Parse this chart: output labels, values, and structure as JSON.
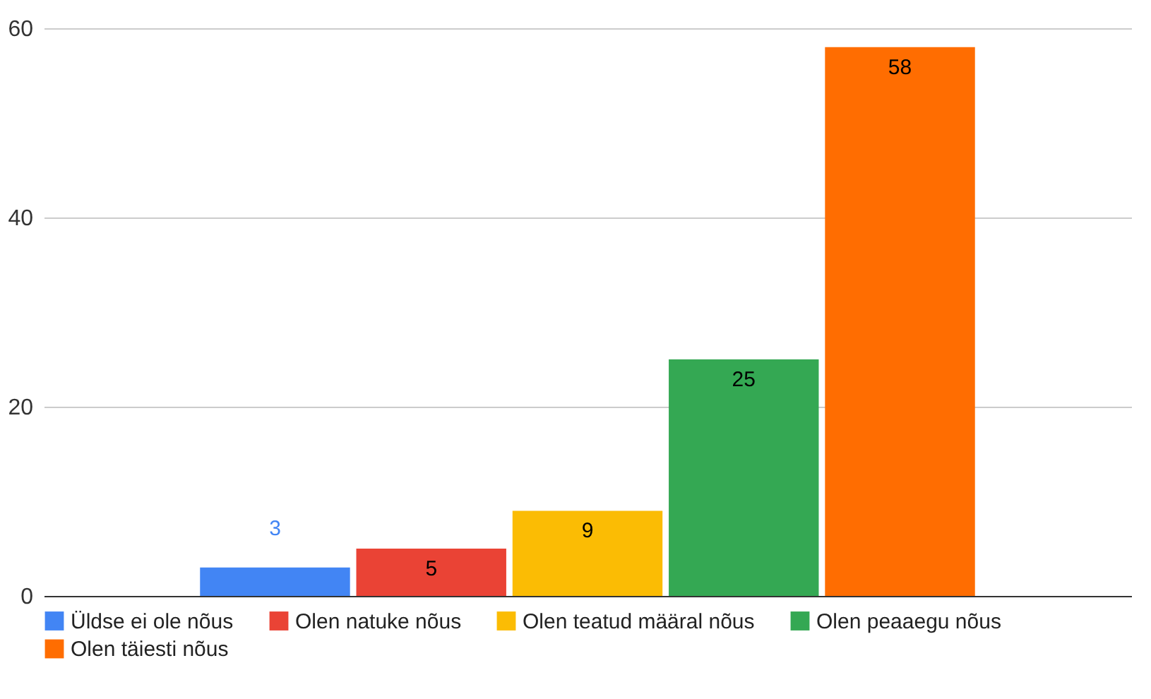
{
  "chart_data": {
    "type": "bar",
    "categories": [
      null
    ],
    "series": [
      {
        "name": "Üldse ei ole nõus",
        "color": "#4285f4",
        "values": [
          3
        ]
      },
      {
        "name": "Olen natuke nõus",
        "color": "#ea4335",
        "values": [
          5
        ]
      },
      {
        "name": "Olen teatud määral nõus",
        "color": "#fbbc04",
        "values": [
          9
        ]
      },
      {
        "name": "Olen peaaegu nõus",
        "color": "#34a853",
        "values": [
          25
        ]
      },
      {
        "name": "Olen täiesti nõus",
        "color": "#ff6d01",
        "values": [
          58
        ]
      }
    ],
    "ylim": [
      0,
      60
    ],
    "yticks": [
      0,
      20,
      40,
      60
    ],
    "grid": "y",
    "legend": "bottom",
    "data_labels": true
  }
}
